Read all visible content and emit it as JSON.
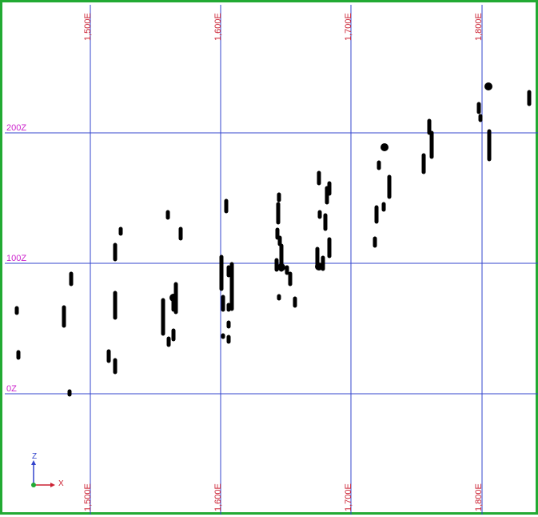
{
  "viewport": {
    "border_color": "#22aa33",
    "grid_color": "#3344cc",
    "label_color": "#cc2233",
    "z_label_color": "#cc22cc",
    "point_color": "#000000",
    "highlight_color": "#2233aa"
  },
  "grid": {
    "easting_labels_top": [
      "1,500E",
      "1,600E",
      "1,700E",
      "1,800E"
    ],
    "easting_labels_bottom": [
      "1,500E",
      "1,600E",
      "1,700E",
      "1,800E"
    ],
    "elevation_labels": [
      "200Z",
      "100Z",
      "0Z"
    ]
  },
  "axis_gizmo": {
    "vertical_axis": "Z",
    "horizontal_axis": "X"
  }
}
